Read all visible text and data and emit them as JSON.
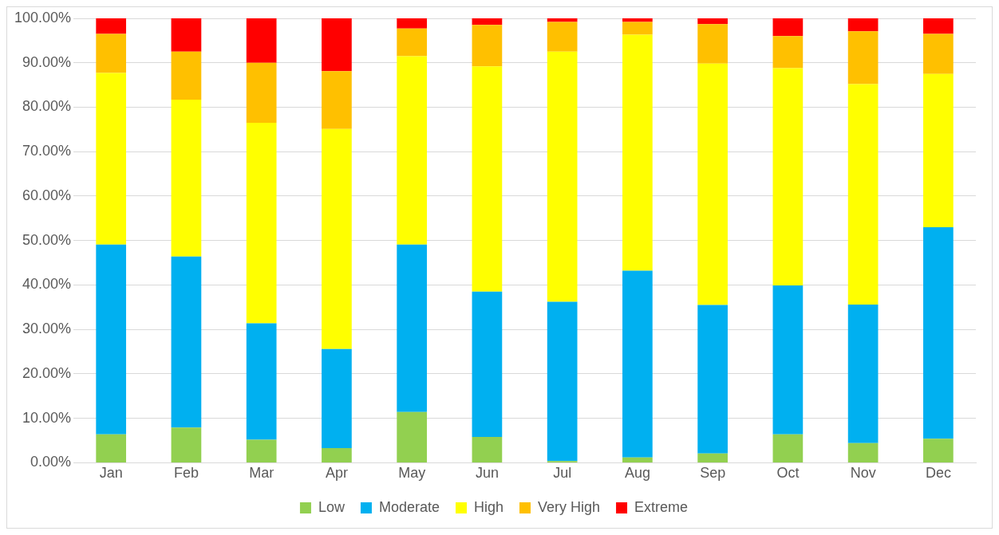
{
  "chart_data": {
    "type": "bar",
    "stacked": true,
    "categories": [
      "Jan",
      "Feb",
      "Mar",
      "Apr",
      "May",
      "Jun",
      "Jul",
      "Aug",
      "Sep",
      "Oct",
      "Nov",
      "Dec"
    ],
    "series": [
      {
        "name": "Low",
        "color": "#92d050",
        "values": [
          6.4,
          7.9,
          5.2,
          3.3,
          11.4,
          5.8,
          0.4,
          1.2,
          2.1,
          6.4,
          4.4,
          5.4
        ]
      },
      {
        "name": "Moderate",
        "color": "#00b0f0",
        "values": [
          42.7,
          38.5,
          26.2,
          22.3,
          37.7,
          32.7,
          35.8,
          42.0,
          33.4,
          33.5,
          31.2,
          47.6
        ]
      },
      {
        "name": "High",
        "color": "#ffff00",
        "values": [
          38.6,
          35.3,
          45.1,
          49.5,
          42.4,
          50.7,
          56.3,
          53.1,
          54.3,
          48.9,
          49.6,
          34.5
        ]
      },
      {
        "name": "Very High",
        "color": "#ffc000",
        "values": [
          8.8,
          10.8,
          13.5,
          13.0,
          6.2,
          9.3,
          6.7,
          2.9,
          8.9,
          7.2,
          11.9,
          9.0
        ]
      },
      {
        "name": "Extreme",
        "color": "#ff0000",
        "values": [
          3.5,
          7.5,
          10.0,
          11.9,
          2.3,
          1.5,
          0.8,
          0.8,
          1.3,
          4.0,
          2.9,
          3.5
        ]
      }
    ],
    "ylim": [
      0,
      100
    ],
    "yticks": [
      {
        "value": 0,
        "label": "0.00%"
      },
      {
        "value": 10,
        "label": "10.00%"
      },
      {
        "value": 20,
        "label": "20.00%"
      },
      {
        "value": 30,
        "label": "30.00%"
      },
      {
        "value": 40,
        "label": "40.00%"
      },
      {
        "value": 50,
        "label": "50.00%"
      },
      {
        "value": 60,
        "label": "60.00%"
      },
      {
        "value": 70,
        "label": "70.00%"
      },
      {
        "value": 80,
        "label": "80.00%"
      },
      {
        "value": 90,
        "label": "90.00%"
      },
      {
        "value": 100,
        "label": "100.00%"
      }
    ],
    "grid": "y",
    "legend": "bottom"
  }
}
